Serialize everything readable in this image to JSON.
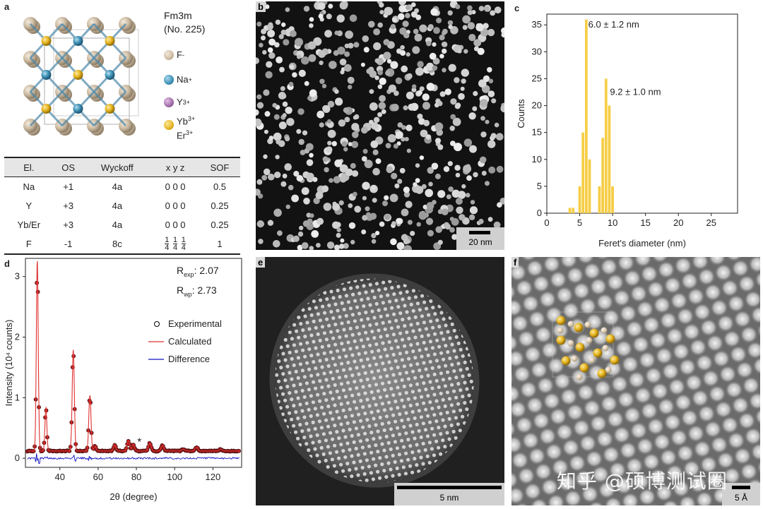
{
  "panel_a": {
    "label": "a",
    "space_group": "Fm3m",
    "space_group_number": "(No. 225)",
    "legend": [
      {
        "ion": "F",
        "charge": "-",
        "color": "#cdbba2"
      },
      {
        "ion": "Na",
        "charge": "+",
        "color": "#3e8fb4"
      },
      {
        "ion": "Y",
        "charge": "3+",
        "color": "#a06aa8"
      },
      {
        "ion": "Yb",
        "charge": "3+",
        "ion2": "Er",
        "charge2": "3+",
        "color": "#e5b420"
      }
    ],
    "table": {
      "headers": [
        "El.",
        "OS",
        "Wyckoff",
        "x y z",
        "SOF"
      ],
      "rows": [
        {
          "el": "Na",
          "os": "+1",
          "wyckoff": "4a",
          "xyz": "0 0 0",
          "sof": "0.5"
        },
        {
          "el": "Y",
          "os": "+3",
          "wyckoff": "4a",
          "xyz": "0 0 0",
          "sof": "0.25"
        },
        {
          "el": "Yb/Er",
          "os": "+3",
          "wyckoff": "4a",
          "xyz": "0 0 0",
          "sof": "0.25"
        },
        {
          "el": "F",
          "os": "-1",
          "wyckoff": "8c",
          "xyz_frac": {
            "num": "1",
            "den": "4"
          },
          "sof": "1"
        }
      ]
    }
  },
  "panel_b": {
    "label": "b",
    "scale_bar": "20 nm"
  },
  "panel_c": {
    "label": "c"
  },
  "panel_d": {
    "label": "d"
  },
  "panel_e": {
    "label": "e",
    "scale_bar": "5 nm"
  },
  "panel_f": {
    "label": "f",
    "scale_bar": "5 Å"
  },
  "watermark": "知乎 @硕博测试圈",
  "chart_data": [
    {
      "id": "c",
      "type": "bar",
      "title": "",
      "xlabel": "Feret's diameter (nm)",
      "ylabel": "Counts",
      "xlim": [
        0,
        29
      ],
      "ylim": [
        0,
        37
      ],
      "xticks": [
        0,
        5,
        10,
        15,
        20,
        25
      ],
      "yticks": [
        0,
        5,
        10,
        15,
        20,
        25,
        30,
        35
      ],
      "bin_width": 0.5,
      "bins": [
        {
          "x": 3.5,
          "y": 1
        },
        {
          "x": 4.0,
          "y": 1
        },
        {
          "x": 5.0,
          "y": 5
        },
        {
          "x": 5.5,
          "y": 15
        },
        {
          "x": 6.0,
          "y": 36
        },
        {
          "x": 6.5,
          "y": 10
        },
        {
          "x": 8.0,
          "y": 5
        },
        {
          "x": 8.5,
          "y": 14
        },
        {
          "x": 9.0,
          "y": 25
        },
        {
          "x": 9.5,
          "y": 20
        },
        {
          "x": 10.0,
          "y": 5
        }
      ],
      "color": "#f6cd45",
      "annotations": [
        {
          "text": "6.0 ± 1.2 nm",
          "x": 6.3,
          "y": 34.5
        },
        {
          "text": "9.2 ± 1.0 nm",
          "x": 9.6,
          "y": 22.0
        }
      ]
    },
    {
      "id": "d",
      "type": "line",
      "xlabel": "2θ (degree)",
      "ylabel": "Intensity (10⁴ counts)",
      "xlim": [
        22,
        135
      ],
      "ylim": [
        -0.15,
        3.3
      ],
      "xticks": [
        40,
        60,
        80,
        100,
        120
      ],
      "yticks": [
        0,
        1,
        2,
        3
      ],
      "stats": [
        {
          "label": "R",
          "sub": "exp",
          "value": ": 2.07"
        },
        {
          "label": "R",
          "sub": "wp",
          "value": ": 2.73"
        }
      ],
      "legend": [
        {
          "name": "Experimental",
          "color": "#000000"
        },
        {
          "name": "Calculated",
          "color": "#e03030"
        },
        {
          "name": "Difference",
          "color": "#1010c0"
        }
      ],
      "background": 0.12,
      "peaks": [
        {
          "center": 28.2,
          "height": 3.15,
          "width": 0.7
        },
        {
          "center": 32.7,
          "height": 0.72,
          "width": 0.7
        },
        {
          "center": 47.0,
          "height": 1.67,
          "width": 0.8
        },
        {
          "center": 55.7,
          "height": 0.92,
          "width": 0.8
        },
        {
          "center": 58.4,
          "height": 0.08,
          "width": 0.8
        },
        {
          "center": 68.7,
          "height": 0.1,
          "width": 0.9
        },
        {
          "center": 75.8,
          "height": 0.17,
          "width": 0.9
        },
        {
          "center": 78.3,
          "height": 0.11,
          "width": 0.9
        },
        {
          "center": 87.0,
          "height": 0.13,
          "width": 1.0
        },
        {
          "center": 93.6,
          "height": 0.09,
          "width": 1.0
        },
        {
          "center": 104.5,
          "height": 0.03,
          "width": 1.0
        },
        {
          "center": 111.4,
          "height": 0.06,
          "width": 1.1
        },
        {
          "center": 124.0,
          "height": 0.03,
          "width": 1.1
        }
      ],
      "asterisk": {
        "text": "*",
        "x": 80.5,
        "y": 0.22
      }
    }
  ]
}
